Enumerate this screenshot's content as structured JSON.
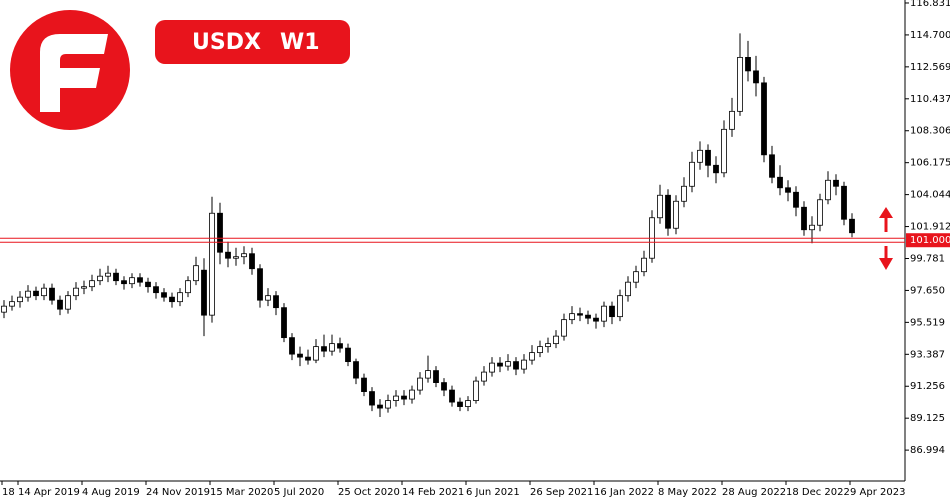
{
  "chart_data": {
    "type": "candlestick",
    "symbol": "USDX",
    "timeframe": "W1",
    "categories": [
      "18",
      null,
      "14 Apr 2019",
      null,
      null,
      null,
      null,
      null,
      null,
      null,
      "4 Aug 2019",
      null,
      null,
      null,
      null,
      null,
      null,
      null,
      "24 Nov 2019",
      null,
      null,
      null,
      null,
      null,
      null,
      null,
      "15 Mar 2020",
      null,
      null,
      null,
      null,
      null,
      null,
      null,
      "5 Jul 2020",
      null,
      null,
      null,
      null,
      null,
      null,
      null,
      "25 Oct 2020",
      null,
      null,
      null,
      null,
      null,
      null,
      null,
      "14 Feb 2021",
      null,
      null,
      null,
      null,
      null,
      null,
      null,
      "6 Jun 2021",
      null,
      null,
      null,
      null,
      null,
      null,
      null,
      "26 Sep 2021",
      null,
      null,
      null,
      null,
      null,
      null,
      null,
      "16 Jan 2022",
      null,
      null,
      null,
      null,
      null,
      null,
      null,
      "8 May 2022",
      null,
      null,
      null,
      null,
      null,
      null,
      null,
      "28 Aug 2022",
      null,
      null,
      null,
      null,
      null,
      null,
      null,
      "18 Dec 2022",
      null,
      null,
      null,
      null,
      null,
      null,
      null,
      "9 Apr 2023"
    ],
    "open": [
      96.2,
      96.6,
      96.9,
      97.2,
      97.6,
      97.3,
      97.8,
      97.0,
      96.4,
      97.3,
      97.8,
      97.9,
      98.3,
      98.6,
      98.8,
      98.3,
      98.1,
      98.5,
      98.2,
      97.9,
      97.5,
      97.2,
      96.9,
      97.5,
      98.3,
      99.0,
      96.0,
      102.8,
      100.2,
      99.8,
      99.9,
      100.1,
      99.1,
      97.0,
      97.3,
      96.5,
      94.5,
      93.4,
      93.2,
      93.0,
      93.9,
      93.6,
      94.1,
      93.8,
      92.9,
      91.8,
      90.9,
      90.0,
      89.8,
      90.3,
      90.6,
      90.4,
      91.0,
      91.8,
      92.3,
      91.5,
      91.0,
      90.2,
      89.9,
      90.3,
      91.6,
      92.2,
      92.8,
      92.6,
      92.9,
      92.4,
      93.0,
      93.5,
      93.9,
      94.1,
      94.6,
      95.7,
      96.1,
      96.0,
      95.8,
      95.6,
      96.6,
      95.9,
      97.3,
      98.2,
      98.9,
      99.8,
      102.5,
      104.0,
      101.8,
      103.6,
      104.6,
      106.2,
      107.0,
      106.0,
      105.5,
      108.4,
      109.6,
      113.2,
      112.3,
      111.5,
      106.7,
      105.2,
      104.5,
      104.2,
      103.2,
      101.7,
      102.0,
      103.7,
      105.0,
      104.6,
      102.4
    ],
    "high": [
      97.0,
      97.3,
      97.6,
      98.0,
      97.9,
      98.1,
      98.1,
      97.3,
      97.6,
      98.2,
      98.3,
      98.7,
      99.1,
      99.3,
      99.1,
      98.6,
      98.8,
      98.8,
      98.5,
      98.2,
      97.8,
      97.5,
      97.8,
      98.6,
      99.9,
      99.8,
      103.9,
      103.5,
      100.9,
      100.5,
      100.6,
      100.5,
      99.4,
      97.8,
      97.6,
      96.8,
      94.8,
      93.9,
      93.7,
      94.4,
      94.7,
      94.7,
      94.5,
      94.1,
      93.1,
      92.1,
      91.2,
      90.4,
      90.7,
      91.0,
      91.0,
      91.3,
      92.2,
      93.3,
      92.6,
      91.8,
      91.3,
      90.5,
      90.6,
      91.9,
      92.6,
      93.2,
      93.2,
      93.4,
      93.2,
      93.4,
      94.0,
      94.3,
      94.5,
      95.0,
      96.1,
      96.6,
      96.5,
      96.3,
      96.1,
      96.9,
      96.9,
      97.7,
      98.6,
      99.3,
      100.3,
      103.0,
      104.7,
      104.4,
      104.0,
      105.2,
      106.9,
      107.6,
      107.4,
      106.6,
      109.0,
      110.5,
      114.8,
      114.3,
      113.3,
      111.9,
      107.3,
      106.0,
      105.0,
      104.6,
      103.6,
      102.6,
      104.1,
      105.6,
      105.4,
      104.9,
      102.8
    ],
    "low": [
      95.8,
      96.3,
      96.5,
      96.9,
      97.0,
      97.0,
      96.7,
      96.0,
      96.1,
      97.0,
      97.4,
      97.6,
      98.0,
      98.2,
      98.0,
      97.7,
      97.8,
      97.9,
      97.5,
      97.1,
      96.9,
      96.5,
      96.6,
      97.2,
      98.0,
      94.6,
      95.5,
      99.4,
      99.2,
      99.3,
      99.4,
      98.7,
      96.5,
      96.6,
      96.0,
      94.2,
      93.0,
      92.6,
      92.7,
      92.8,
      93.2,
      93.3,
      93.5,
      92.6,
      91.4,
      90.6,
      89.6,
      89.2,
      89.5,
      89.9,
      90.0,
      90.1,
      90.7,
      91.5,
      91.2,
      90.6,
      89.9,
      89.6,
      89.6,
      90.1,
      91.3,
      91.9,
      92.2,
      92.3,
      92.0,
      92.1,
      92.7,
      93.2,
      93.5,
      93.8,
      94.3,
      95.4,
      95.6,
      95.4,
      95.1,
      95.2,
      95.4,
      95.6,
      96.9,
      97.8,
      98.6,
      99.5,
      102.1,
      101.3,
      101.4,
      103.2,
      104.2,
      105.7,
      105.2,
      104.8,
      105.2,
      107.9,
      109.3,
      111.6,
      110.6,
      106.2,
      104.8,
      104.0,
      103.6,
      102.6,
      101.3,
      100.8,
      101.6,
      103.4,
      104.0,
      102.0,
      101.2
    ],
    "close": [
      96.6,
      96.9,
      97.2,
      97.6,
      97.3,
      97.8,
      97.0,
      96.4,
      97.3,
      97.8,
      97.9,
      98.3,
      98.6,
      98.8,
      98.3,
      98.1,
      98.5,
      98.2,
      97.9,
      97.5,
      97.2,
      96.9,
      97.5,
      98.3,
      99.3,
      96.0,
      102.8,
      100.2,
      99.8,
      99.9,
      100.1,
      99.1,
      97.0,
      97.3,
      96.5,
      94.5,
      93.4,
      93.2,
      93.0,
      93.9,
      93.6,
      94.1,
      93.8,
      92.9,
      91.8,
      90.9,
      90.0,
      89.8,
      90.3,
      90.6,
      90.4,
      91.0,
      91.8,
      92.3,
      91.5,
      91.0,
      90.2,
      89.9,
      90.3,
      91.6,
      92.2,
      92.8,
      92.6,
      92.9,
      92.4,
      93.0,
      93.5,
      93.9,
      94.1,
      94.6,
      95.7,
      96.1,
      96.0,
      95.8,
      95.6,
      96.6,
      95.9,
      97.3,
      98.2,
      98.9,
      99.8,
      102.5,
      104.0,
      101.8,
      103.6,
      104.6,
      106.2,
      107.0,
      106.0,
      105.5,
      108.4,
      109.6,
      113.2,
      112.3,
      111.5,
      106.7,
      105.2,
      104.5,
      104.2,
      103.2,
      101.7,
      102.0,
      103.7,
      105.0,
      104.6,
      102.4,
      101.5
    ],
    "up_color": "#ffffff",
    "down_color": "#000000",
    "ylim": [
      85.0,
      117.03
    ],
    "yticks": [
      116.831,
      {
        "value": 114.7,
        "label": "114.700"
      },
      112.569,
      110.437,
      108.306,
      106.175,
      104.044,
      101.912,
      99.781,
      {
        "value": 97.65,
        "label": "97.650"
      },
      95.519,
      93.387,
      91.256,
      89.125,
      86.994
    ],
    "level": {
      "value": 101,
      "label": "101.000",
      "color": "#e8141c"
    }
  }
}
